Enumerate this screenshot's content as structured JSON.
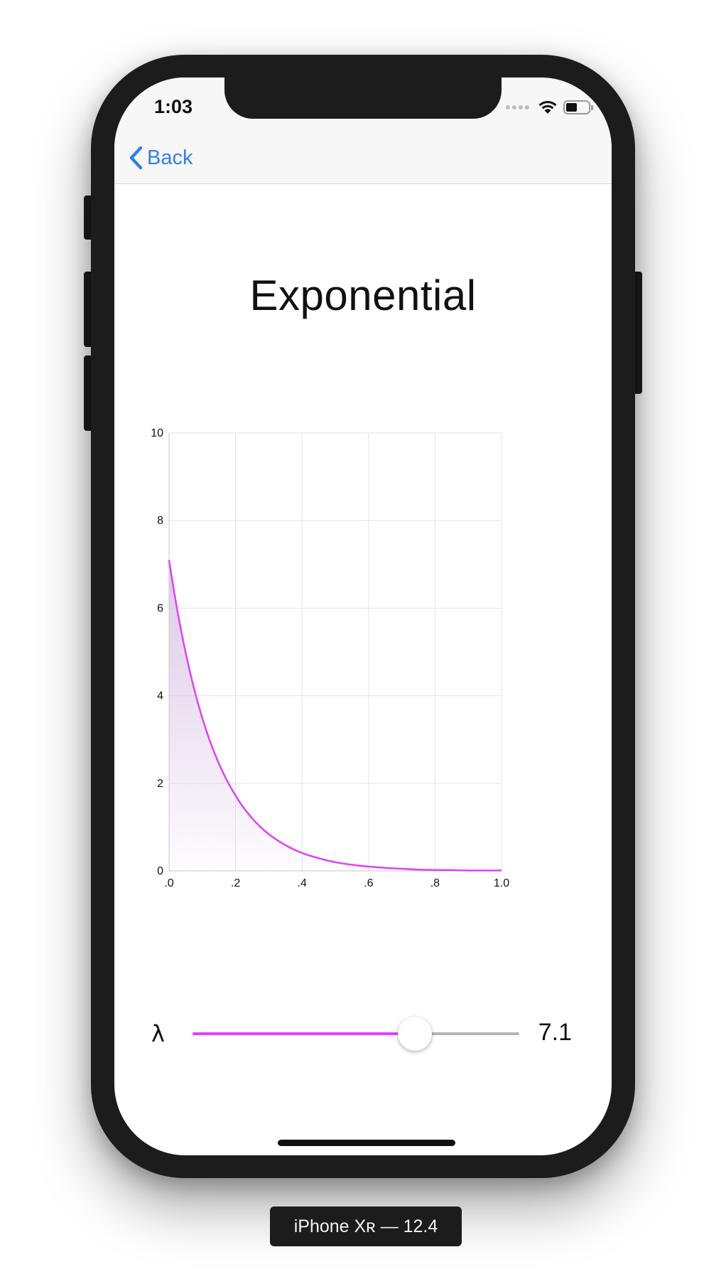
{
  "status_bar": {
    "time": "1:03",
    "icons": [
      "cellular-signal-icon",
      "wifi-icon",
      "battery-icon"
    ],
    "battery_level": 0.5
  },
  "nav": {
    "back_label": "Back",
    "back_icon": "chevron-left-icon"
  },
  "page": {
    "title": "Exponential"
  },
  "chart_data": {
    "type": "area",
    "title": "",
    "xlabel": "",
    "ylabel": "",
    "xlim": [
      0,
      1
    ],
    "ylim": [
      0,
      10
    ],
    "x_ticks": [
      ".0",
      ".2",
      ".4",
      ".6",
      ".8",
      "1.0"
    ],
    "y_ticks": [
      "0",
      "2",
      "4",
      "6",
      "8",
      "10"
    ],
    "grid": true,
    "series": [
      {
        "x": [
          0,
          0.05,
          0.1,
          0.15,
          0.2,
          0.25,
          0.3,
          0.35,
          0.4,
          0.45,
          0.5,
          0.55,
          0.6,
          0.65,
          0.7,
          0.75,
          0.8,
          0.85,
          0.9,
          0.95,
          1.0
        ],
        "y": [
          7.1,
          4.98,
          3.49,
          2.45,
          1.72,
          1.2,
          0.84,
          0.59,
          0.41,
          0.29,
          0.2,
          0.14,
          0.1,
          0.07,
          0.05,
          0.03,
          0.02,
          0.02,
          0.01,
          0.01,
          0.01
        ]
      }
    ],
    "colors": {
      "line": "#e040fb",
      "fill": "#d8c3e3",
      "grid": "#e3e3e3",
      "axis": "#c8c8c8"
    }
  },
  "slider": {
    "label": "λ",
    "value": 7.1,
    "value_text": "7.1",
    "fraction": 0.68,
    "min_color": "#e040fb",
    "max_color": "#b5b5b5"
  },
  "device_label": "iPhone Xʀ — 12.4"
}
